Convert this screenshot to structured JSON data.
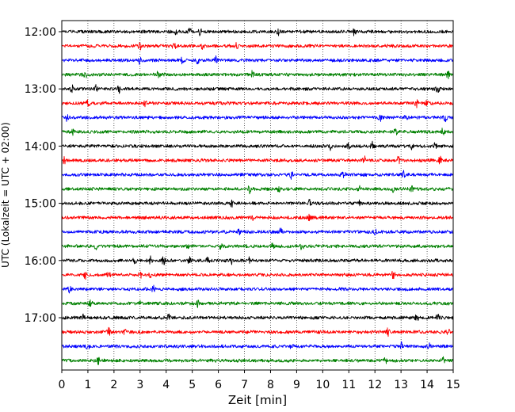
{
  "colors": {
    "background": "#ffffff",
    "frame": "#000000",
    "grid": "#000000",
    "trace_cycle": [
      "#000000",
      "#ff0000",
      "#0000ff",
      "#008000"
    ]
  },
  "chart_data": {
    "type": "line",
    "subtype": "helicorder",
    "title": "",
    "xlabel": "Zeit  [min]",
    "ylabel": "UTC (Lokalzeit = UTC + 02:00)",
    "xlim": [
      0,
      15
    ],
    "x_ticks": [
      "0",
      "1",
      "2",
      "3",
      "4",
      "5",
      "6",
      "7",
      "8",
      "9",
      "10",
      "11",
      "12",
      "13",
      "14",
      "15"
    ],
    "x_grid": "dotted vertical lines at each minute",
    "y_tick_labels": [
      "12:00",
      "13:00",
      "14:00",
      "15:00",
      "16:00",
      "17:00"
    ],
    "traces_per_hour": 4,
    "minutes_per_trace": 15,
    "series": [
      {
        "start": "12:00",
        "color": "#000000"
      },
      {
        "start": "12:15",
        "color": "#ff0000"
      },
      {
        "start": "12:30",
        "color": "#0000ff"
      },
      {
        "start": "12:45",
        "color": "#008000"
      },
      {
        "start": "13:00",
        "color": "#000000"
      },
      {
        "start": "13:15",
        "color": "#ff0000"
      },
      {
        "start": "13:30",
        "color": "#0000ff"
      },
      {
        "start": "13:45",
        "color": "#008000"
      },
      {
        "start": "14:00",
        "color": "#000000"
      },
      {
        "start": "14:15",
        "color": "#ff0000"
      },
      {
        "start": "14:30",
        "color": "#0000ff"
      },
      {
        "start": "14:45",
        "color": "#008000"
      },
      {
        "start": "15:00",
        "color": "#000000"
      },
      {
        "start": "15:15",
        "color": "#ff0000"
      },
      {
        "start": "15:30",
        "color": "#0000ff"
      },
      {
        "start": "15:45",
        "color": "#008000"
      },
      {
        "start": "16:00",
        "color": "#000000"
      },
      {
        "start": "16:15",
        "color": "#ff0000"
      },
      {
        "start": "16:30",
        "color": "#0000ff"
      },
      {
        "start": "16:45",
        "color": "#008000"
      },
      {
        "start": "17:00",
        "color": "#000000"
      },
      {
        "start": "17:15",
        "color": "#ff0000"
      },
      {
        "start": "17:30",
        "color": "#0000ff"
      },
      {
        "start": "17:45",
        "color": "#008000"
      }
    ],
    "events": [
      {
        "trace": "12:00",
        "minutes": [
          4.4,
          4.9,
          5.3,
          8.3,
          11.2
        ]
      },
      {
        "trace": "12:15",
        "minutes": [
          3.0,
          4.3,
          5.4,
          6.7
        ]
      },
      {
        "trace": "12:30",
        "minutes": [
          3.0,
          4.6,
          5.2,
          5.9
        ]
      },
      {
        "trace": "12:45",
        "minutes": [
          0.9,
          3.7,
          7.3,
          14.8
        ]
      },
      {
        "trace": "13:00",
        "minutes": [
          0.4,
          1.3,
          2.2,
          14.4
        ]
      },
      {
        "trace": "13:15",
        "minutes": [
          1.0,
          3.2,
          13.6,
          14.0
        ]
      },
      {
        "trace": "13:30",
        "minutes": [
          0.2,
          12.2,
          13.2,
          14.7
        ]
      },
      {
        "trace": "13:45",
        "minutes": [
          0.4,
          12.8,
          14.6
        ]
      },
      {
        "trace": "14:00",
        "minutes": [
          10.3,
          11.0,
          11.9,
          13.4,
          14.3
        ]
      },
      {
        "trace": "14:15",
        "minutes": [
          0.1,
          11.6,
          12.9,
          14.5
        ]
      },
      {
        "trace": "14:30",
        "minutes": [
          8.8,
          10.8,
          13.1
        ]
      },
      {
        "trace": "14:45",
        "minutes": [
          7.2,
          8.3,
          11.4,
          12.7,
          13.4
        ]
      },
      {
        "trace": "15:00",
        "minutes": [
          6.5,
          9.5,
          11.4
        ]
      },
      {
        "trace": "15:15",
        "minutes": [
          7.3,
          9.5
        ]
      },
      {
        "trace": "15:30",
        "minutes": [
          6.8,
          8.4,
          12.0
        ]
      },
      {
        "trace": "15:45",
        "minutes": [
          1.3,
          4.8,
          6.1,
          8.1,
          9.2
        ]
      },
      {
        "trace": "16:00",
        "minutes": [
          2.8,
          3.4,
          3.9,
          4.9,
          5.6,
          6.5,
          7.2
        ]
      },
      {
        "trace": "16:15",
        "minutes": [
          0.9,
          1.8,
          3.0,
          3.4,
          12.7
        ]
      },
      {
        "trace": "16:30",
        "minutes": [
          0.3,
          3.5
        ]
      },
      {
        "trace": "16:45",
        "minutes": [
          1.1,
          3.0,
          5.2
        ]
      },
      {
        "trace": "17:00",
        "minutes": [
          0.8,
          4.1,
          13.6,
          14.4
        ]
      },
      {
        "trace": "17:15",
        "minutes": [
          1.8,
          2.4,
          12.5,
          14.8
        ]
      },
      {
        "trace": "17:30",
        "minutes": [
          1.0,
          8.8,
          13.0,
          14.1
        ]
      },
      {
        "trace": "17:45",
        "minutes": [
          1.4,
          12.4,
          14.6
        ]
      }
    ]
  }
}
